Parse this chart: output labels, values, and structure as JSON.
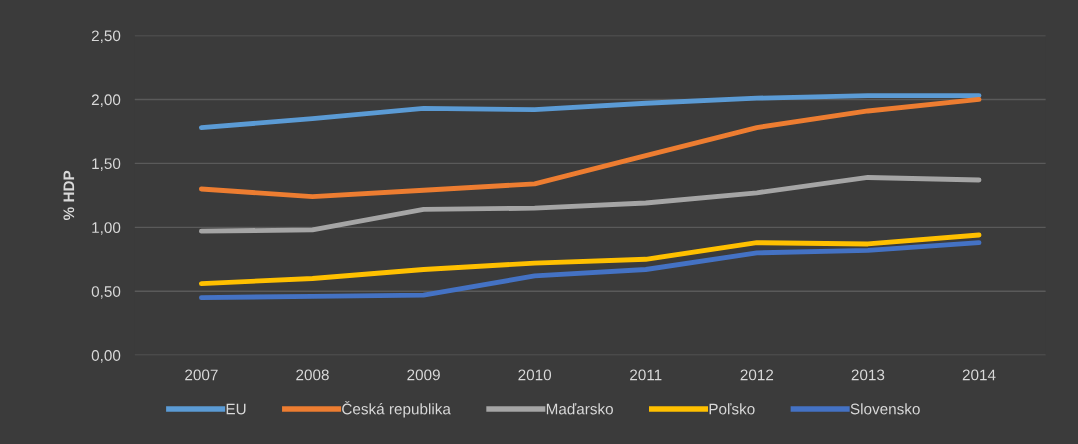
{
  "chart_data": {
    "type": "line",
    "ylabel": "% HDP",
    "categories": [
      "2007",
      "2008",
      "2009",
      "2010",
      "2011",
      "2012",
      "2013",
      "2014"
    ],
    "series": [
      {
        "name": "EU",
        "color": "#5b9bd5",
        "values": [
          1.78,
          1.85,
          1.93,
          1.92,
          1.97,
          2.01,
          2.03,
          2.03
        ]
      },
      {
        "name": "Česká republika",
        "color": "#ed7d31",
        "values": [
          1.3,
          1.24,
          1.29,
          1.34,
          1.56,
          1.78,
          1.91,
          2.0
        ]
      },
      {
        "name": "Maďarsko",
        "color": "#a5a5a5",
        "values": [
          0.97,
          0.98,
          1.14,
          1.15,
          1.19,
          1.27,
          1.39,
          1.37
        ]
      },
      {
        "name": "Poľsko",
        "color": "#ffc000",
        "values": [
          0.56,
          0.6,
          0.67,
          0.72,
          0.75,
          0.88,
          0.87,
          0.94
        ]
      },
      {
        "name": "Slovensko",
        "color": "#4472c4",
        "values": [
          0.45,
          0.46,
          0.47,
          0.62,
          0.67,
          0.8,
          0.82,
          0.88
        ]
      }
    ],
    "ylim": [
      0,
      2.5
    ],
    "yticks": [
      {
        "value": 0,
        "label": "0,00"
      },
      {
        "value": 0.5,
        "label": "0,50"
      },
      {
        "value": 1,
        "label": "1,00"
      },
      {
        "value": 1.5,
        "label": "1,50"
      },
      {
        "value": 2,
        "label": "2,00"
      },
      {
        "value": 2.5,
        "label": "2,50"
      }
    ],
    "grid": "y",
    "legend": "bottom",
    "marker": "none",
    "line_style": "solid"
  }
}
